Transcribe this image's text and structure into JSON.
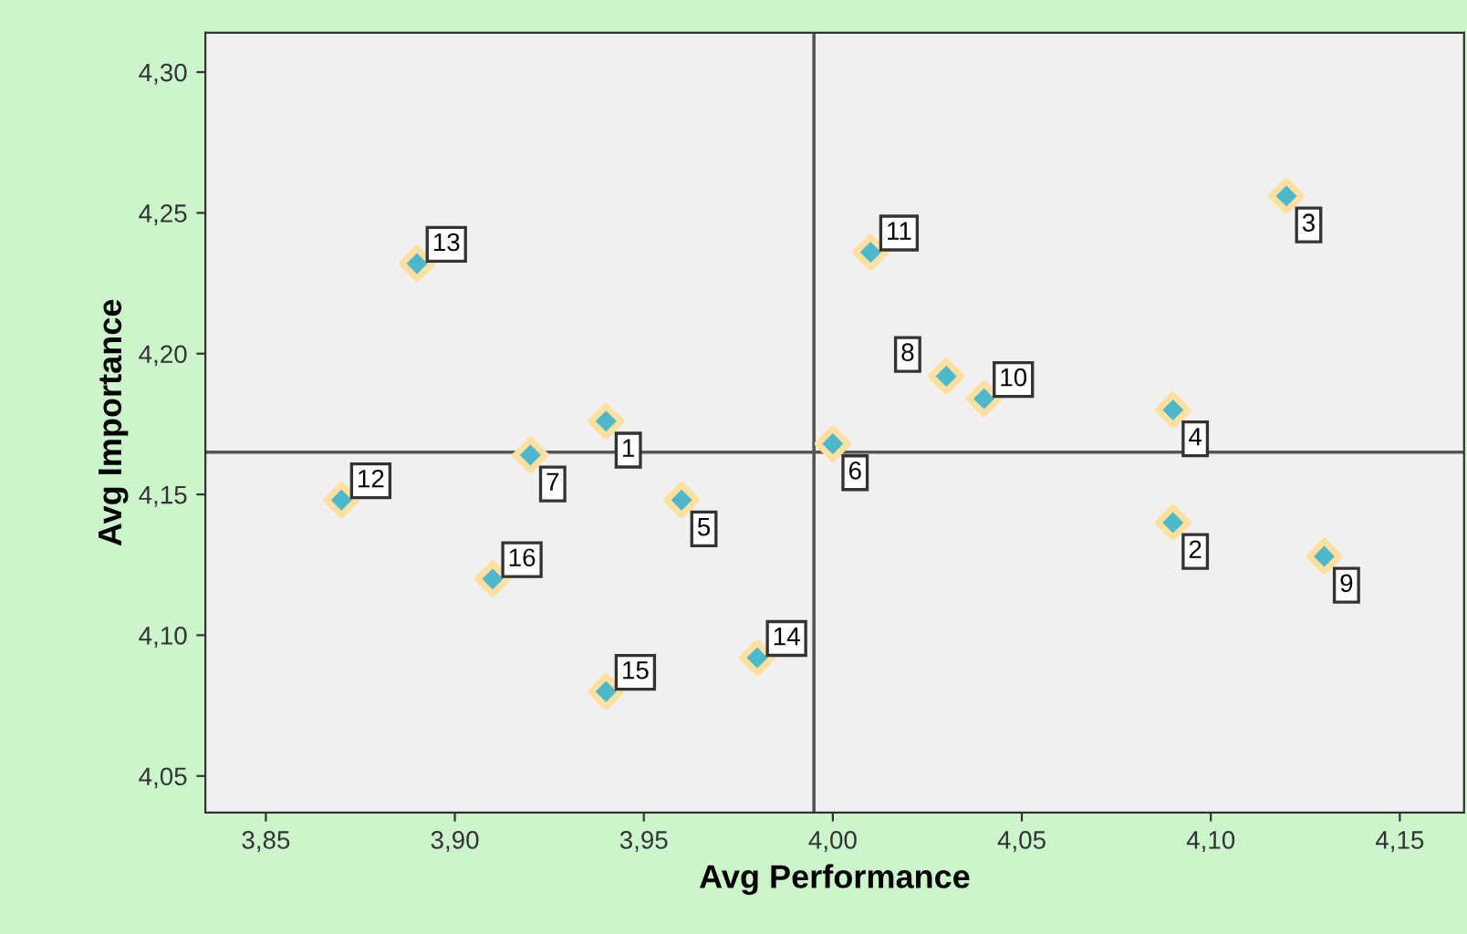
{
  "chart_data": {
    "type": "scatter",
    "xlabel": "Avg Performance",
    "ylabel": "Avg Importance",
    "series": [
      {
        "color": "#4db8c9",
        "x": [
          3.94,
          4.09,
          4.12,
          4.09,
          3.96,
          4.0,
          3.92,
          4.03,
          4.13,
          4.04,
          4.01,
          3.87,
          3.89,
          3.98,
          3.94,
          3.91
        ],
        "values": [
          4.176,
          4.14,
          4.256,
          4.18,
          4.148,
          4.168,
          4.164,
          4.192,
          4.128,
          4.184,
          4.236,
          4.148,
          4.232,
          4.092,
          4.08,
          4.12
        ]
      }
    ],
    "annotations": [
      {
        "text": "1",
        "x": 3.94,
        "y": 4.176
      },
      {
        "text": "2",
        "x": 4.09,
        "y": 4.14
      },
      {
        "text": "3",
        "x": 4.12,
        "y": 4.256
      },
      {
        "text": "4",
        "x": 4.09,
        "y": 4.18
      },
      {
        "text": "5",
        "x": 3.96,
        "y": 4.148
      },
      {
        "text": "6",
        "x": 4.0,
        "y": 4.168
      },
      {
        "text": "7",
        "x": 3.92,
        "y": 4.164
      },
      {
        "text": "8",
        "x": 4.03,
        "y": 4.192
      },
      {
        "text": "9",
        "x": 4.13,
        "y": 4.128
      },
      {
        "text": "10",
        "x": 4.04,
        "y": 4.184
      },
      {
        "text": "11",
        "x": 4.01,
        "y": 4.236
      },
      {
        "text": "12",
        "x": 3.87,
        "y": 4.148
      },
      {
        "text": "13",
        "x": 3.89,
        "y": 4.232
      },
      {
        "text": "14",
        "x": 3.98,
        "y": 4.092
      },
      {
        "text": "15",
        "x": 3.94,
        "y": 4.08
      },
      {
        "text": "16",
        "x": 3.91,
        "y": 4.12
      }
    ],
    "ref_lines": [
      {
        "axis": "x",
        "value": 3.995,
        "color": "#555555"
      },
      {
        "axis": "y",
        "value": 4.165,
        "color": "#555555"
      }
    ],
    "xlim": [
      3.834,
      4.167
    ],
    "ylim": [
      4.037,
      4.314
    ],
    "xticks": [
      {
        "value": 3.85,
        "label": "3,85"
      },
      {
        "value": 3.9,
        "label": "3,90"
      },
      {
        "value": 3.95,
        "label": "3,95"
      },
      {
        "value": 4.0,
        "label": "4,00"
      },
      {
        "value": 4.05,
        "label": "4,05"
      },
      {
        "value": 4.1,
        "label": "4,10"
      },
      {
        "value": 4.15,
        "label": "4,15"
      }
    ],
    "yticks": [
      {
        "value": 4.05,
        "label": "4,05"
      },
      {
        "value": 4.1,
        "label": "4,10"
      },
      {
        "value": 4.15,
        "label": "4,15"
      },
      {
        "value": 4.2,
        "label": "4,20"
      },
      {
        "value": 4.25,
        "label": "4,25"
      },
      {
        "value": 4.3,
        "label": "4,30"
      }
    ],
    "marker": "diamond",
    "grid": false,
    "legend": false
  }
}
